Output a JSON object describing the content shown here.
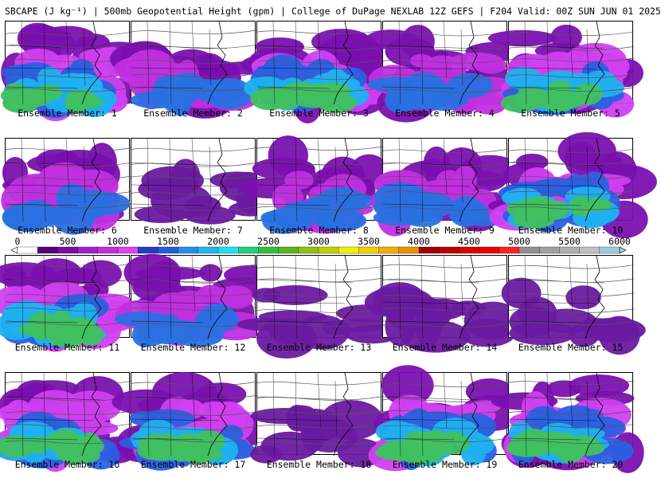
{
  "title": "SBCAPE (J kg⁻¹) | 500mb Geopotential Height (gpm) | College of DuPage NEXLAB 12Z GEFS | F204 Valid: 00Z SUN JUN 01 2025",
  "colorbar": {
    "ticks": [
      "0",
      "500",
      "1000",
      "1500",
      "2000",
      "2500",
      "3000",
      "3500",
      "4000",
      "4500",
      "5000",
      "5500",
      "6000"
    ],
    "colors": [
      "#ffffff",
      "#55007f",
      "#7a0fa0",
      "#a020d0",
      "#c82ce0",
      "#e040f0",
      "#2040c0",
      "#2060e0",
      "#2090f0",
      "#20b8f0",
      "#20e0f0",
      "#20d080",
      "#30c040",
      "#60b020",
      "#90c010",
      "#c0d000",
      "#f0f000",
      "#f0d000",
      "#f0b000",
      "#f09000",
      "#a00000",
      "#c00000",
      "#e00000",
      "#f00000",
      "#ff2020",
      "#909090",
      "#a0a0a0",
      "#b0b0b0",
      "#c0c0c0",
      "#a0c8e0"
    ]
  },
  "panels": [
    {
      "label": "Ensemble Member: 1",
      "cape": "high"
    },
    {
      "label": "Ensemble Member: 2",
      "cape": "med"
    },
    {
      "label": "Ensemble Member: 3",
      "cape": "high"
    },
    {
      "label": "Ensemble Member: 4",
      "cape": "med"
    },
    {
      "label": "Ensemble Member: 5",
      "cape": "high"
    },
    {
      "label": "Ensemble Member: 6",
      "cape": "med"
    },
    {
      "label": "Ensemble Member: 7",
      "cape": "low"
    },
    {
      "label": "Ensemble Member: 8",
      "cape": "med"
    },
    {
      "label": "Ensemble Member: 9",
      "cape": "med"
    },
    {
      "label": "Ensemble Member: 10",
      "cape": "high"
    },
    {
      "label": "Ensemble Member: 11",
      "cape": "high"
    },
    {
      "label": "Ensemble Member: 12",
      "cape": "med"
    },
    {
      "label": "Ensemble Member: 13",
      "cape": "low"
    },
    {
      "label": "Ensemble Member: 14",
      "cape": "low"
    },
    {
      "label": "Ensemble Member: 15",
      "cape": "low"
    },
    {
      "label": "Ensemble Member: 16",
      "cape": "high"
    },
    {
      "label": "Ensemble Member: 17",
      "cape": "high"
    },
    {
      "label": "Ensemble Member: 18",
      "cape": "low"
    },
    {
      "label": "Ensemble Member: 19",
      "cape": "high"
    },
    {
      "label": "Ensemble Member: 20",
      "cape": "high"
    }
  ]
}
